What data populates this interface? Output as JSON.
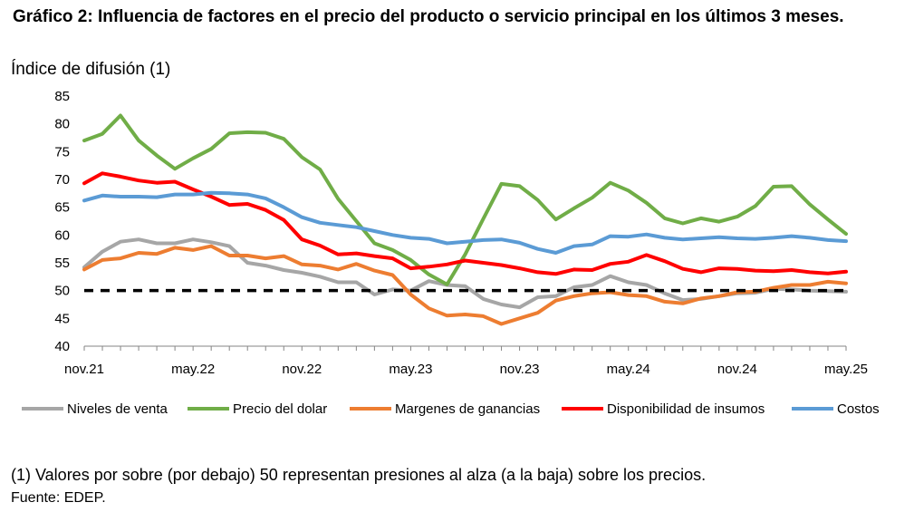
{
  "title": "Gráfico 2: Influencia de factores en el precio del producto o servicio principal en los últimos 3 meses.",
  "footnote": "(1) Valores por sobre (por debajo) 50 representan presiones al alza (a la baja) sobre los precios.",
  "source": "Fuente: EDEP.",
  "chart_data": {
    "type": "line",
    "ylabel": "Índice de difusión (1)",
    "ylim": [
      40,
      85
    ],
    "yticks": [
      40,
      45,
      50,
      55,
      60,
      65,
      70,
      75,
      80,
      85
    ],
    "x": [
      "nov.21",
      "dic.21",
      "ene.22",
      "feb.22",
      "mar.22",
      "abr.22",
      "may.22",
      "jun.22",
      "jul.22",
      "ago.22",
      "sep.22",
      "oct.22",
      "nov.22",
      "dic.22",
      "ene.23",
      "feb.23",
      "mar.23",
      "abr.23",
      "may.23",
      "jun.23",
      "jul.23",
      "ago.23",
      "sep.23",
      "oct.23",
      "nov.23",
      "dic.23",
      "ene.24",
      "feb.24",
      "mar.24",
      "abr.24",
      "may.24",
      "jun.24",
      "jul.24",
      "ago.24",
      "sep.24",
      "oct.24",
      "nov.24",
      "dic.24",
      "ene.25",
      "feb.25",
      "mar.25",
      "abr.25",
      "may.25"
    ],
    "xtick_labels": [
      {
        "index": 0,
        "label": "nov.21"
      },
      {
        "index": 6,
        "label": "may.22"
      },
      {
        "index": 12,
        "label": "nov.22"
      },
      {
        "index": 18,
        "label": "may.23"
      },
      {
        "index": 24,
        "label": "nov.23"
      },
      {
        "index": 30,
        "label": "may.24"
      },
      {
        "index": 36,
        "label": "nov.24"
      },
      {
        "index": 42,
        "label": "may.25"
      }
    ],
    "reference_line": {
      "value": 50,
      "color": "#000000",
      "style": "dashed"
    },
    "legend_position": "bottom",
    "series": [
      {
        "name": "Niveles de venta",
        "color": "#A6A6A6",
        "values": [
          54.2,
          57.0,
          58.8,
          59.2,
          58.5,
          58.5,
          59.2,
          58.7,
          58.0,
          55.0,
          54.5,
          53.7,
          53.2,
          52.5,
          51.5,
          51.5,
          49.3,
          50.2,
          50.0,
          51.7,
          51.0,
          50.8,
          48.5,
          47.5,
          47.0,
          48.8,
          49.0,
          50.6,
          51.0,
          52.6,
          51.5,
          51.0,
          49.5,
          48.3,
          48.5,
          49.0,
          49.5,
          49.6,
          50.3,
          50.2,
          50.0,
          49.9,
          49.8
        ]
      },
      {
        "name": "Precio del dolar",
        "color": "#70AD47",
        "values": [
          77.0,
          78.2,
          81.5,
          77.0,
          74.3,
          71.9,
          73.8,
          75.5,
          78.3,
          78.5,
          78.4,
          77.3,
          74.0,
          71.8,
          66.5,
          62.5,
          58.5,
          57.3,
          55.5,
          52.9,
          51.1,
          56.5,
          62.9,
          69.2,
          68.8,
          66.3,
          62.8,
          64.8,
          66.7,
          69.4,
          68.0,
          65.8,
          63.0,
          62.1,
          63.0,
          62.4,
          63.3,
          65.2,
          68.7,
          68.8,
          65.5,
          62.8,
          60.2
        ]
      },
      {
        "name": "Margenes de ganancias",
        "color": "#ED7D31",
        "values": [
          53.8,
          55.5,
          55.8,
          56.8,
          56.6,
          57.7,
          57.3,
          58.0,
          56.3,
          56.3,
          55.8,
          56.2,
          54.7,
          54.5,
          53.8,
          54.8,
          53.6,
          52.8,
          49.3,
          46.8,
          45.5,
          45.7,
          45.4,
          44.0,
          45.0,
          46.0,
          48.2,
          49.0,
          49.5,
          49.7,
          49.2,
          49.0,
          48.0,
          47.7,
          48.6,
          49.0,
          49.7,
          49.8,
          50.5,
          51.0,
          51.0,
          51.6,
          51.3
        ]
      },
      {
        "name": "Disponibilidad de insumos",
        "color": "#FF0000",
        "values": [
          69.3,
          71.1,
          70.5,
          69.8,
          69.4,
          69.6,
          68.2,
          66.9,
          65.4,
          65.6,
          64.5,
          62.7,
          59.2,
          58.1,
          56.5,
          56.7,
          56.2,
          55.8,
          54.0,
          54.3,
          54.7,
          55.4,
          55.0,
          54.6,
          54.0,
          53.3,
          53.0,
          53.8,
          53.7,
          54.8,
          55.2,
          56.4,
          55.3,
          53.9,
          53.3,
          54.0,
          53.9,
          53.6,
          53.5,
          53.7,
          53.3,
          53.1,
          53.4
        ]
      },
      {
        "name": "Costos",
        "color": "#5B9BD5",
        "values": [
          66.2,
          67.1,
          66.9,
          66.9,
          66.8,
          67.3,
          67.3,
          67.6,
          67.5,
          67.3,
          66.6,
          65.0,
          63.2,
          62.2,
          61.8,
          61.4,
          60.7,
          60.0,
          59.5,
          59.3,
          58.5,
          58.8,
          59.1,
          59.2,
          58.6,
          57.5,
          56.8,
          58.0,
          58.3,
          59.8,
          59.7,
          60.1,
          59.5,
          59.2,
          59.4,
          59.6,
          59.4,
          59.3,
          59.5,
          59.8,
          59.5,
          59.1,
          58.9
        ]
      }
    ]
  }
}
